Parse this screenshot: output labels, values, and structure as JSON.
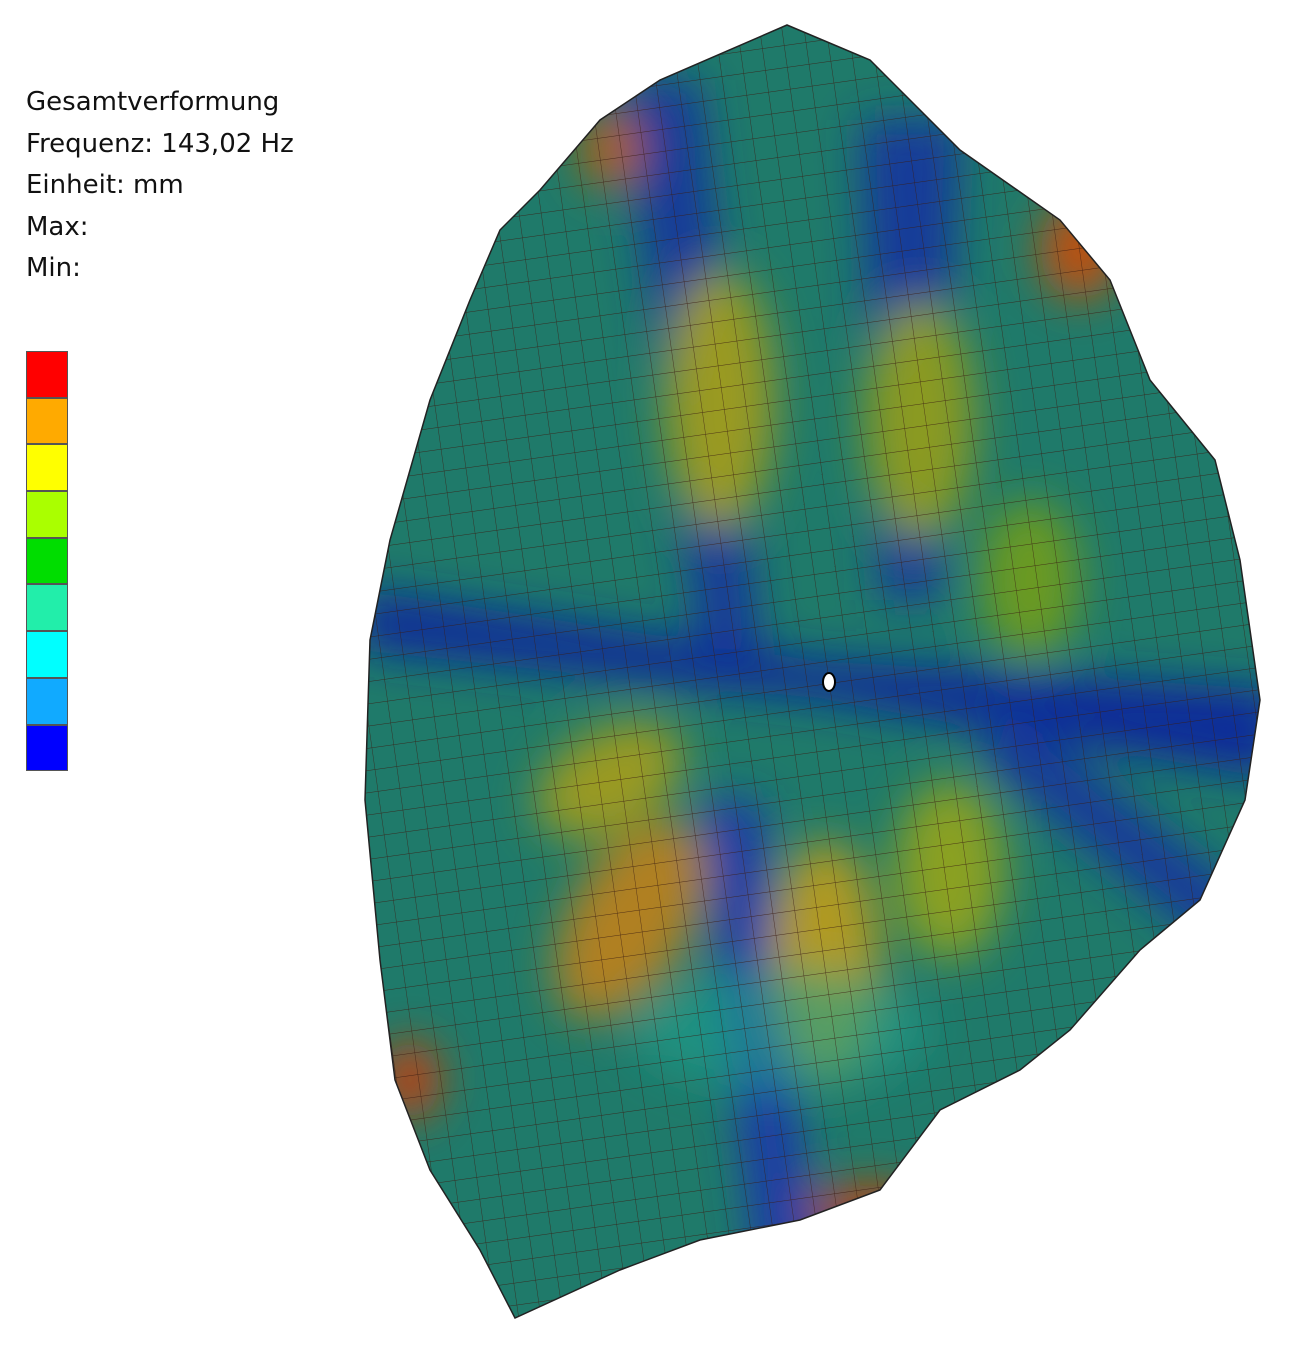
{
  "info": {
    "lines": [
      "Gesamtverformung",
      "Frequenz: 143,02 Hz",
      "Einheit: mm",
      "Max:",
      "Min:"
    ]
  },
  "legend": {
    "colors": [
      "#ff0000",
      "#ffaa00",
      "#ffff00",
      "#aaff00",
      "#00dd00",
      "#22eeaa",
      "#00ffff",
      "#11aaff",
      "#0000ff"
    ]
  }
}
